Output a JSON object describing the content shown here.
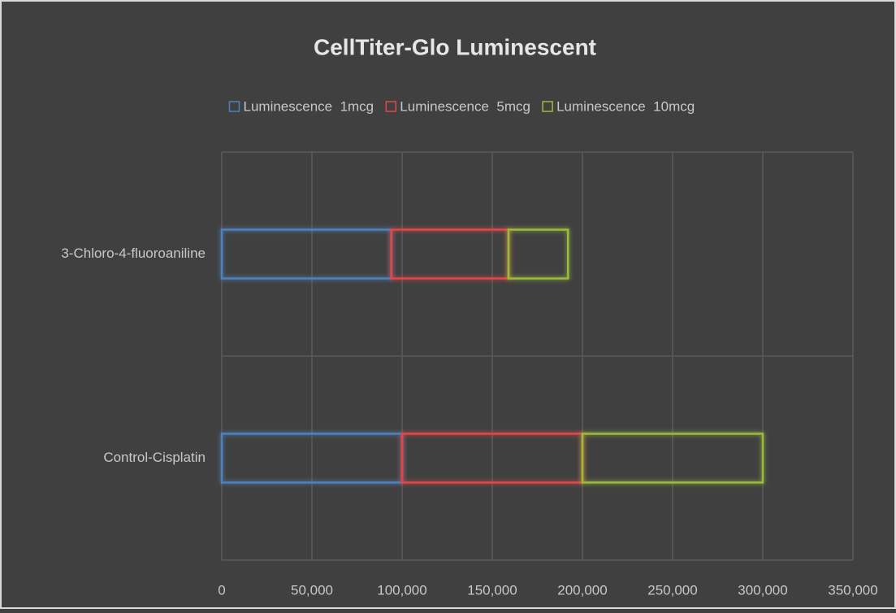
{
  "chart_data": {
    "type": "stacked_barh",
    "title": "CellTiter-Glo Luminescent",
    "categories": [
      "Control-Cisplatin",
      "3-Chloro-4-fluoroaniline"
    ],
    "series": [
      {
        "name": "Luminescence  1mcg",
        "color": "#4f81bd",
        "values": [
          100000,
          94000
        ]
      },
      {
        "name": "Luminescence  5mcg",
        "color": "#e0474c",
        "values": [
          100000,
          65000
        ]
      },
      {
        "name": "Luminescence  10mcg",
        "color": "#9bbb3b",
        "values": [
          100000,
          33000
        ]
      }
    ],
    "xlim": [
      0,
      350000
    ],
    "xticks": [
      0,
      {
        "value": 50000,
        "label": "50,000"
      },
      {
        "value": 100000,
        "label": "100,000"
      },
      {
        "value": 150000,
        "label": "150,000"
      },
      {
        "value": 200000,
        "label": "200,000"
      },
      {
        "value": 250000,
        "label": "250,000"
      },
      {
        "value": 300000,
        "label": "300,000"
      },
      {
        "value": 350000,
        "label": "350,000"
      }
    ],
    "grid": true,
    "legend": "top"
  }
}
